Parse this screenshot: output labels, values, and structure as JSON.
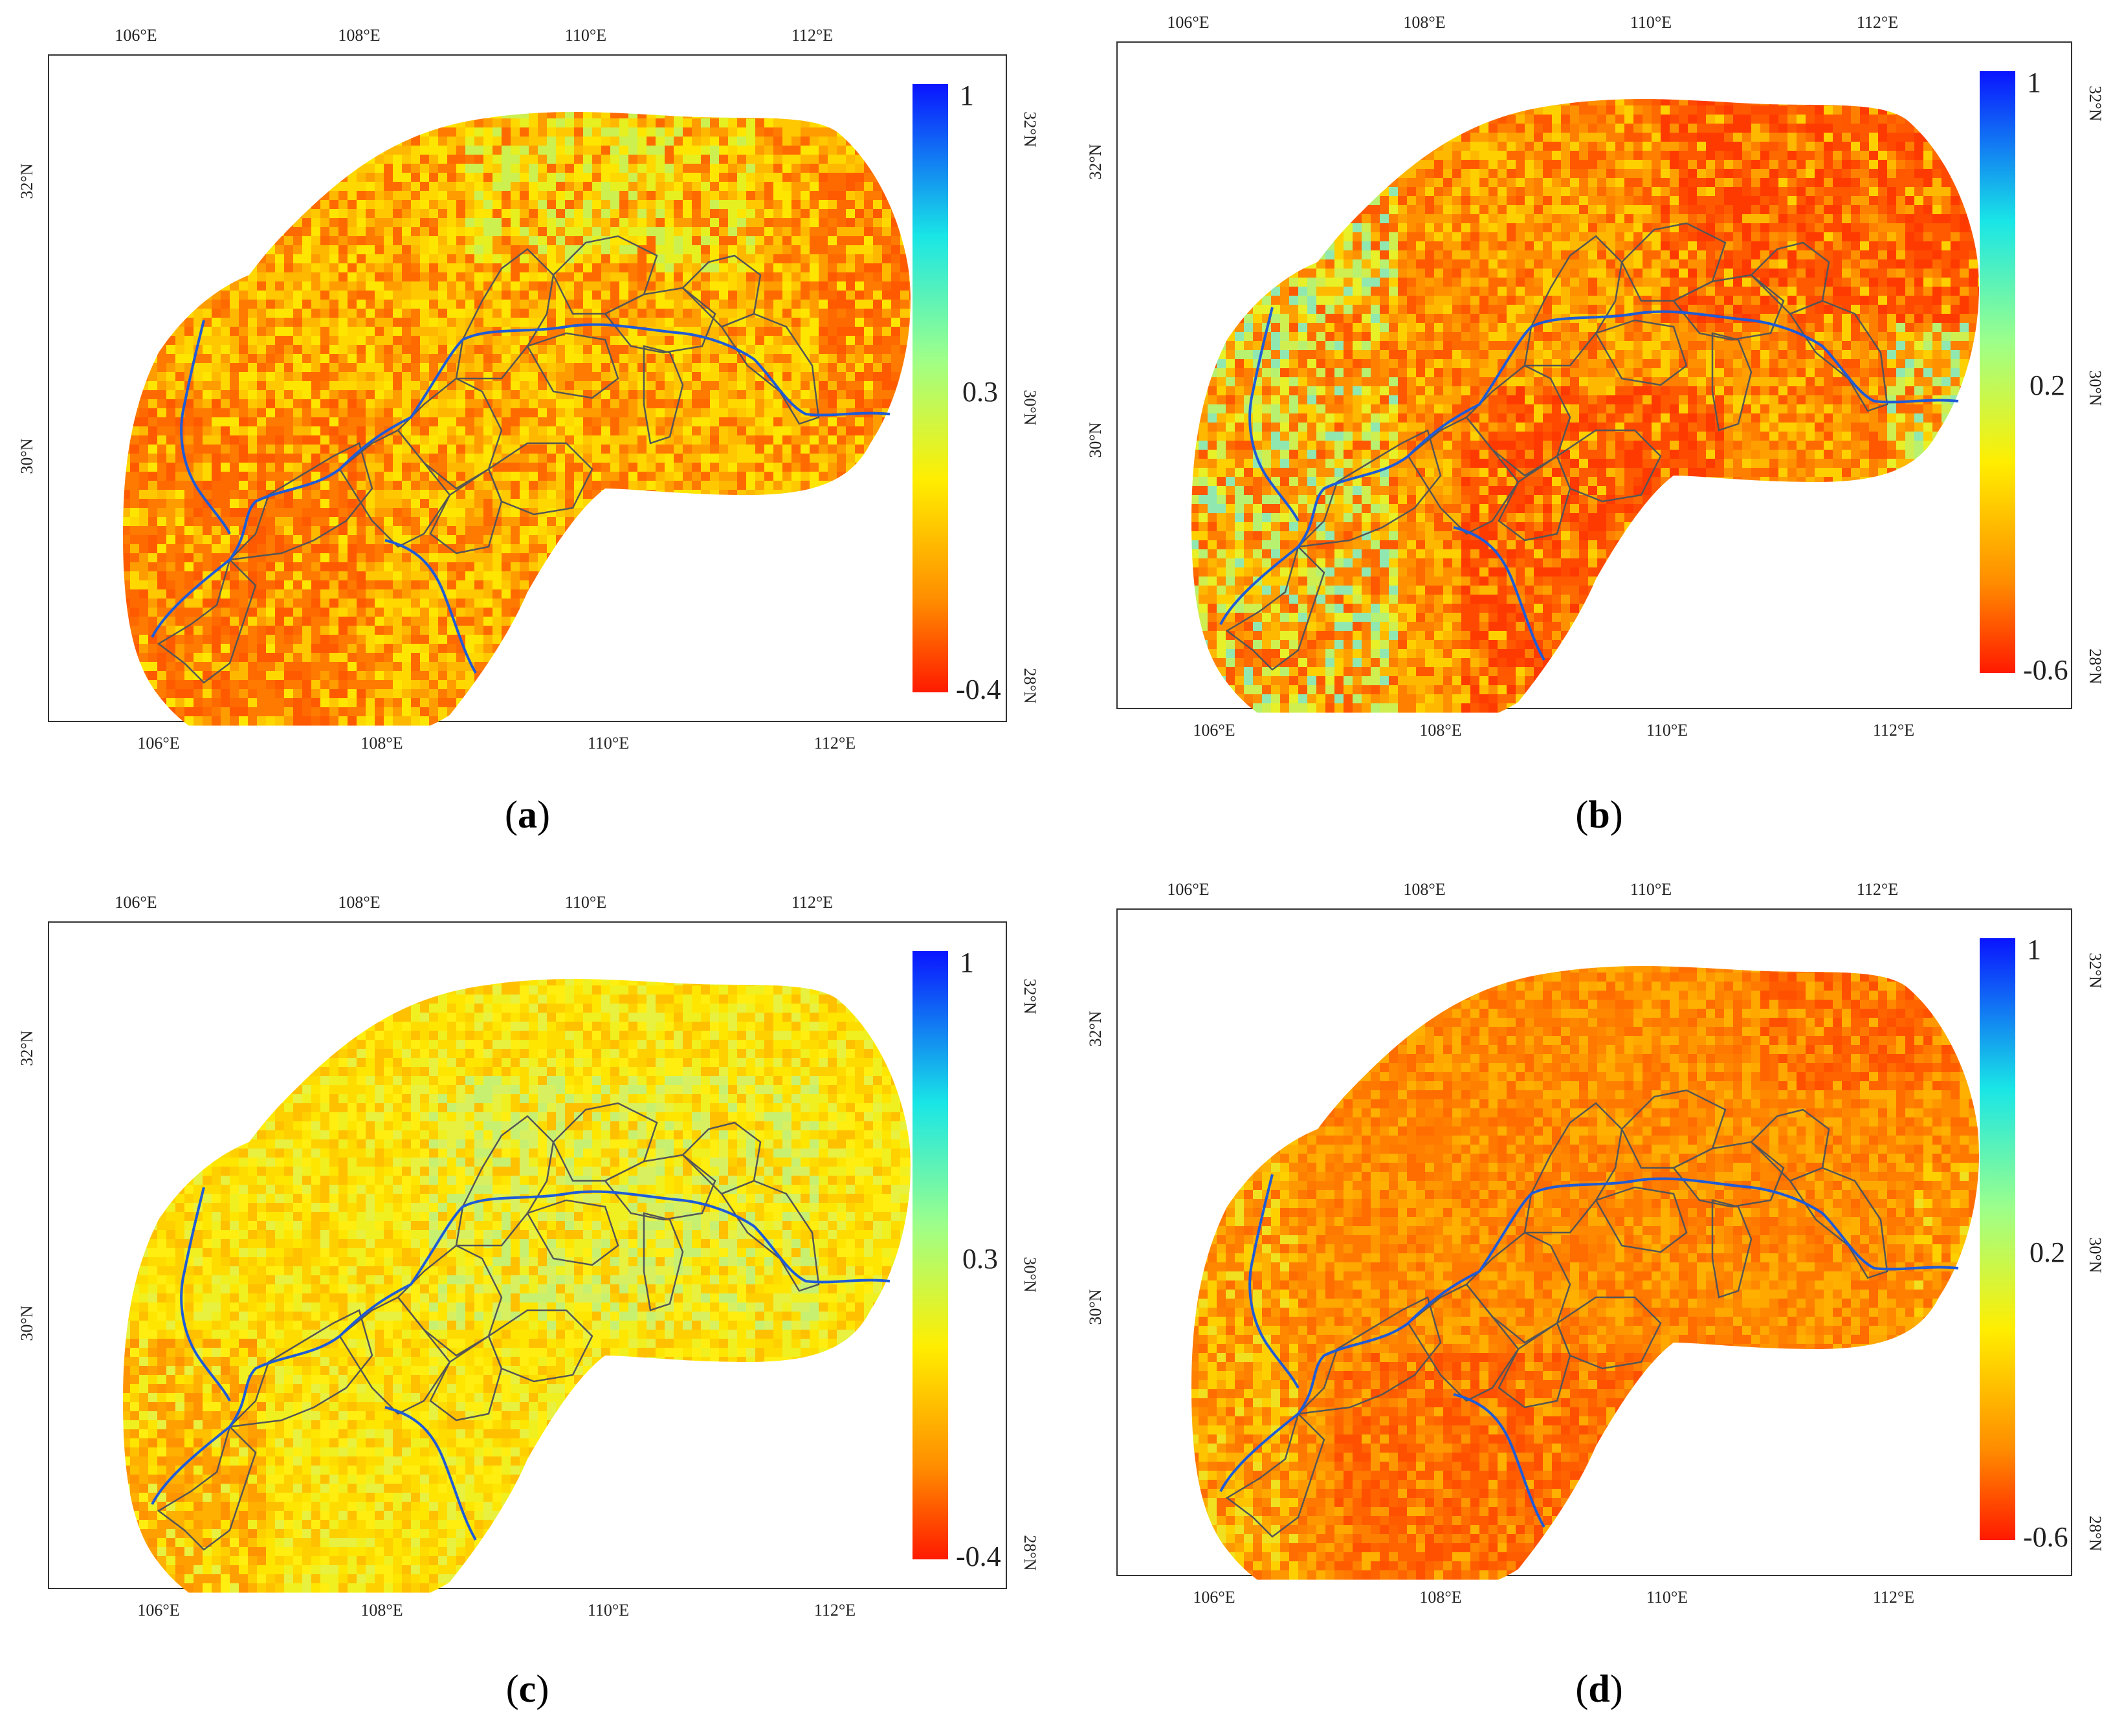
{
  "palette": {
    "red": "#ff1a00",
    "orange": "#ff8c00",
    "yellow": "#ffee00",
    "green": "#9dff8a",
    "cyan": "#19e6e6",
    "blue": "#0a14ff",
    "river": "#1f5bd6",
    "boundary": "#555555",
    "frame": "#333333"
  },
  "axes": {
    "lon_labels": [
      "106°E",
      "108°E",
      "110°E",
      "112°E"
    ],
    "lat_labels": [
      "32°N",
      "30°N",
      "28°N"
    ]
  },
  "panels": [
    {
      "id": "a",
      "caption": "a",
      "legend_labels": {
        "max": "1",
        "mid": "0.3",
        "min": "-0.4"
      },
      "legend_colors": [
        "#0a14ff",
        "#19e6e6",
        "#9dff8a",
        "#ffee00",
        "#ff8c00",
        "#ff1a00"
      ],
      "dominant_color": "orange-yellow"
    },
    {
      "id": "b",
      "caption": "b",
      "legend_labels": {
        "max": "1",
        "mid": "0.2",
        "min": "-0.6"
      },
      "legend_colors": [
        "#0a14ff",
        "#19e6e6",
        "#9dff8a",
        "#ffee00",
        "#ff8c00",
        "#ff1a00"
      ],
      "dominant_color": "orange-red"
    },
    {
      "id": "c",
      "caption": "c",
      "legend_labels": {
        "max": "1",
        "mid": "0.3",
        "min": "-0.4"
      },
      "legend_colors": [
        "#0a14ff",
        "#19e6e6",
        "#9dff8a",
        "#ffee00",
        "#ff8c00",
        "#ff1a00"
      ],
      "dominant_color": "yellow"
    },
    {
      "id": "d",
      "caption": "d",
      "legend_labels": {
        "max": "1",
        "mid": "0.2",
        "min": "-0.6"
      },
      "legend_colors": [
        "#0a14ff",
        "#19e6e6",
        "#9dff8a",
        "#ffee00",
        "#ff8c00",
        "#ff1a00"
      ],
      "dominant_color": "orange"
    }
  ]
}
